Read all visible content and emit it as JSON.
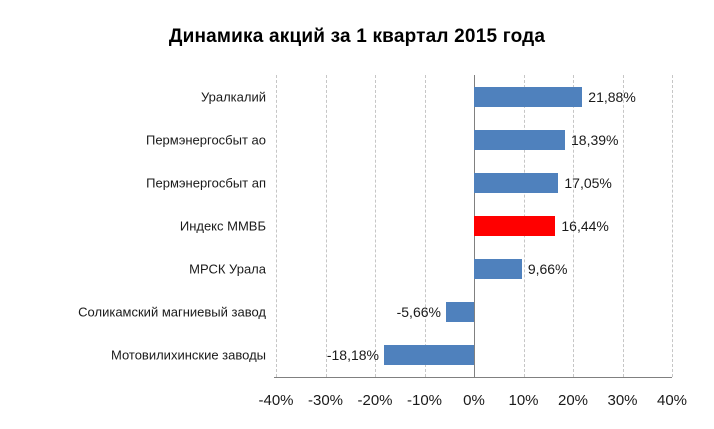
{
  "title": "Динамика акций за 1 квартал 2015 года",
  "chart_data": {
    "type": "bar",
    "orientation": "horizontal",
    "title": "Динамика акций за 1 квартал 2015 года",
    "categories": [
      "Уралкалий",
      "Пермэнергосбыт ао",
      "Пермэнергосбыт ап",
      "Индекс ММВБ",
      "МРСК Урала",
      "Соликамский магниевый завод",
      "Мотовилихинские заводы"
    ],
    "values": [
      21.88,
      18.39,
      17.05,
      16.44,
      9.66,
      -5.66,
      -18.18
    ],
    "value_labels": [
      "21,88%",
      "18,39%",
      "17,05%",
      "16,44%",
      "9,66%",
      "-5,66%",
      "-18,18%"
    ],
    "highlight_index": 3,
    "highlighted_category": "Индекс ММВБ",
    "xlim": [
      -40,
      40
    ],
    "x_tick_values": [
      -40,
      -30,
      -20,
      -10,
      0,
      10,
      20,
      30,
      40
    ],
    "x_tick_labels": [
      "-40%",
      "-30%",
      "-20%",
      "-10%",
      "0%",
      "10%",
      "20%",
      "30%",
      "40%"
    ],
    "grid": "vertical-dashed",
    "legend": "none",
    "colors": {
      "bar": "#4f81bd",
      "highlight": "#ff0000",
      "gridline": "#c6c6c6",
      "axis_line": "#808080",
      "text": "#1a1a1a",
      "background": "#ffffff"
    }
  }
}
